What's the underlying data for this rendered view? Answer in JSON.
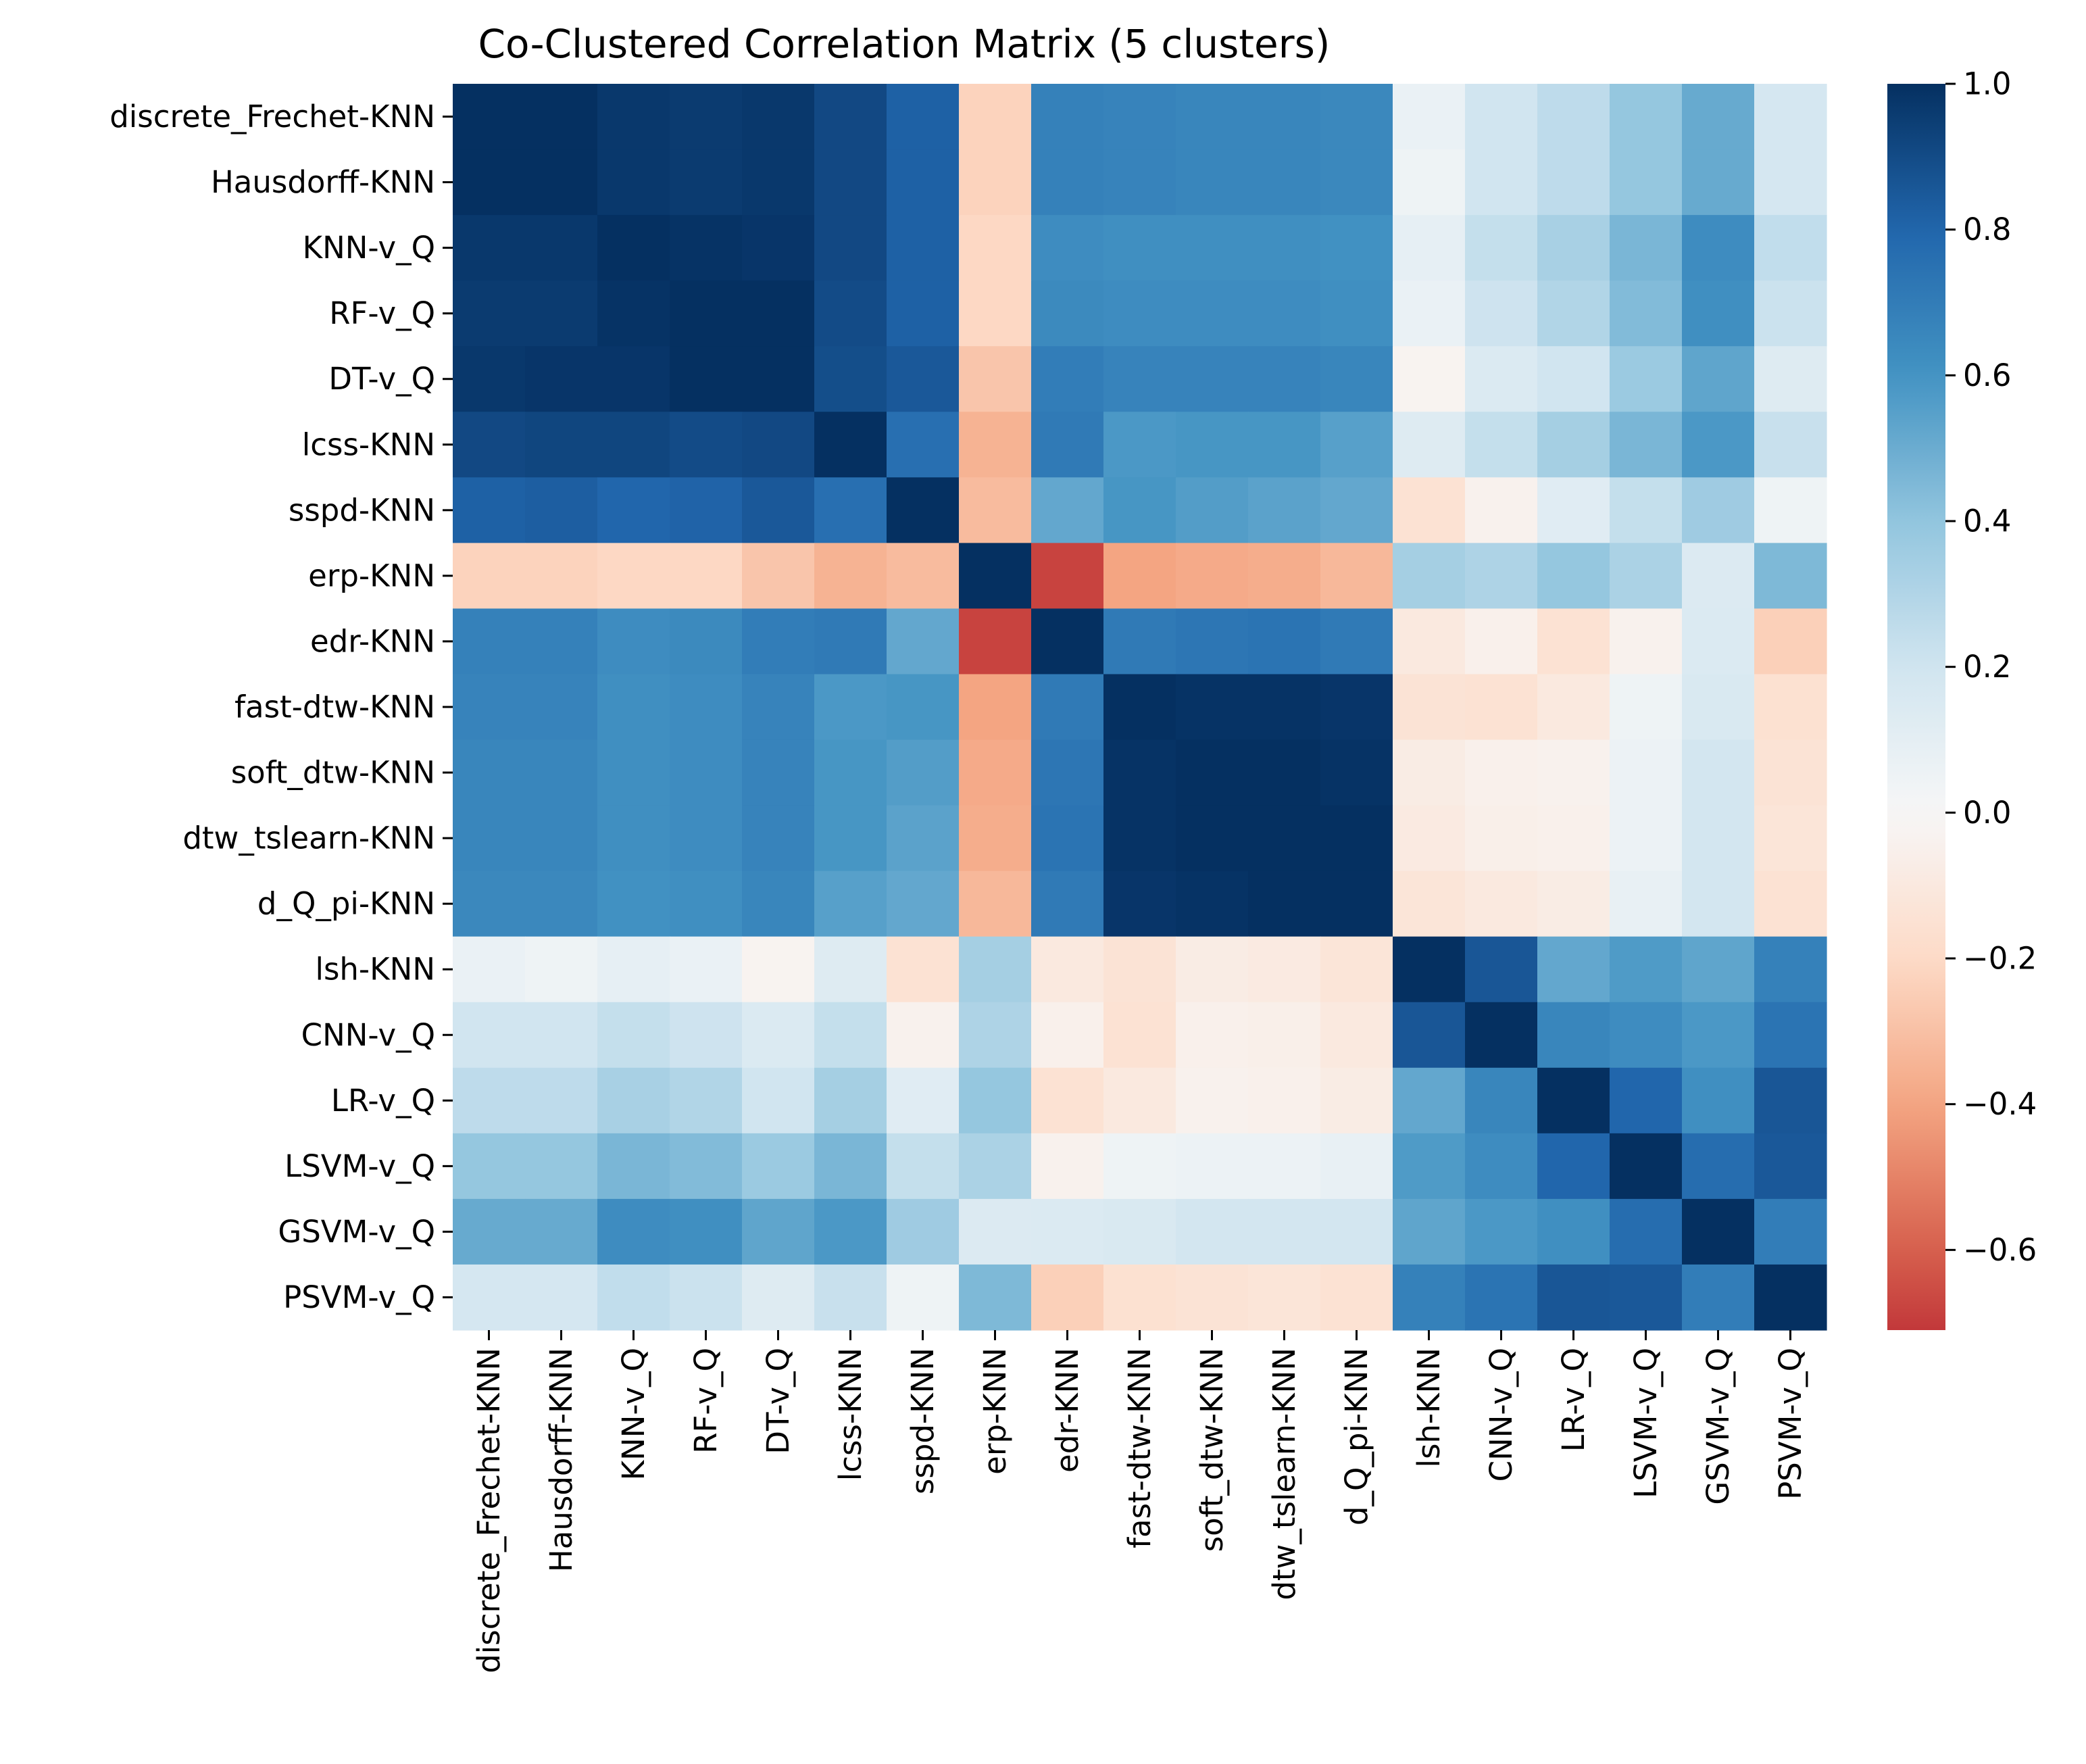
{
  "chart_data": {
    "type": "heatmap",
    "title": "Co-Clustered Correlation Matrix (5 clusters)",
    "xlabel": "",
    "ylabel": "",
    "labels": [
      "discrete_Frechet-KNN",
      "Hausdorff-KNN",
      "KNN-v_Q",
      "RF-v_Q",
      "DT-v_Q",
      "lcss-KNN",
      "sspd-KNN",
      "erp-KNN",
      "edr-KNN",
      "fast-dtw-KNN",
      "soft_dtw-KNN",
      "dtw_tslearn-KNN",
      "d_Q_pi-KNN",
      "lsh-KNN",
      "CNN-v_Q",
      "LR-v_Q",
      "LSVM-v_Q",
      "GSVM-v_Q",
      "PSVM-v_Q"
    ],
    "values": [
      [
        1.0,
        1.0,
        0.97,
        0.96,
        0.97,
        0.91,
        0.82,
        -0.23,
        0.68,
        0.67,
        0.66,
        0.66,
        0.65,
        0.07,
        0.2,
        0.26,
        0.39,
        0.51,
        0.18
      ],
      [
        1.0,
        1.0,
        0.97,
        0.96,
        0.97,
        0.91,
        0.82,
        -0.23,
        0.68,
        0.67,
        0.66,
        0.66,
        0.65,
        0.05,
        0.2,
        0.26,
        0.39,
        0.51,
        0.18
      ],
      [
        0.97,
        0.97,
        1.0,
        0.99,
        0.98,
        0.91,
        0.82,
        -0.21,
        0.63,
        0.62,
        0.62,
        0.62,
        0.61,
        0.09,
        0.24,
        0.33,
        0.46,
        0.63,
        0.25
      ],
      [
        0.96,
        0.96,
        0.99,
        1.0,
        1.0,
        0.9,
        0.82,
        -0.21,
        0.64,
        0.63,
        0.63,
        0.63,
        0.62,
        0.07,
        0.21,
        0.3,
        0.44,
        0.62,
        0.22
      ],
      [
        0.97,
        0.98,
        0.98,
        1.0,
        1.0,
        0.89,
        0.85,
        -0.28,
        0.7,
        0.67,
        0.67,
        0.67,
        0.66,
        -0.03,
        0.15,
        0.2,
        0.37,
        0.53,
        0.13
      ],
      [
        0.91,
        0.92,
        0.92,
        0.9,
        0.91,
        1.0,
        0.76,
        -0.35,
        0.71,
        0.58,
        0.59,
        0.59,
        0.55,
        0.13,
        0.24,
        0.34,
        0.46,
        0.58,
        0.23
      ],
      [
        0.82,
        0.83,
        0.8,
        0.81,
        0.85,
        0.76,
        1.0,
        -0.32,
        0.52,
        0.59,
        0.56,
        0.54,
        0.52,
        -0.15,
        -0.04,
        0.12,
        0.24,
        0.36,
        0.05
      ],
      [
        -0.23,
        -0.23,
        -0.21,
        -0.21,
        -0.28,
        -0.35,
        -0.32,
        1.0,
        -0.68,
        -0.4,
        -0.38,
        -0.37,
        -0.33,
        0.34,
        0.31,
        0.39,
        0.32,
        0.14,
        0.45
      ],
      [
        0.68,
        0.68,
        0.63,
        0.64,
        0.7,
        0.71,
        0.52,
        -0.68,
        1.0,
        0.71,
        0.73,
        0.74,
        0.71,
        -0.1,
        -0.05,
        -0.15,
        -0.04,
        0.15,
        -0.24
      ],
      [
        0.67,
        0.67,
        0.62,
        0.63,
        0.67,
        0.58,
        0.59,
        -0.4,
        0.71,
        1.0,
        0.99,
        0.99,
        0.98,
        -0.14,
        -0.15,
        -0.1,
        0.05,
        0.16,
        -0.16
      ],
      [
        0.66,
        0.66,
        0.62,
        0.63,
        0.67,
        0.59,
        0.56,
        -0.38,
        0.73,
        0.99,
        1.0,
        1.0,
        0.99,
        -0.08,
        -0.05,
        -0.04,
        0.06,
        0.19,
        -0.14
      ],
      [
        0.66,
        0.66,
        0.62,
        0.63,
        0.67,
        0.59,
        0.54,
        -0.37,
        0.74,
        0.99,
        1.0,
        1.0,
        1.0,
        -0.09,
        -0.06,
        -0.05,
        0.06,
        0.19,
        -0.13
      ],
      [
        0.65,
        0.65,
        0.61,
        0.62,
        0.66,
        0.55,
        0.52,
        -0.33,
        0.71,
        0.98,
        0.99,
        1.0,
        1.0,
        -0.13,
        -0.1,
        -0.08,
        0.08,
        0.19,
        -0.15
      ],
      [
        0.07,
        0.05,
        0.09,
        0.07,
        -0.03,
        0.13,
        -0.15,
        0.34,
        -0.1,
        -0.14,
        -0.08,
        -0.09,
        -0.13,
        1.0,
        0.86,
        0.52,
        0.57,
        0.53,
        0.68
      ],
      [
        0.2,
        0.2,
        0.24,
        0.21,
        0.15,
        0.24,
        -0.04,
        0.31,
        -0.05,
        -0.15,
        -0.05,
        -0.06,
        -0.1,
        0.86,
        1.0,
        0.66,
        0.63,
        0.58,
        0.74
      ],
      [
        0.26,
        0.26,
        0.33,
        0.3,
        0.2,
        0.34,
        0.12,
        0.39,
        -0.15,
        -0.1,
        -0.04,
        -0.05,
        -0.08,
        0.52,
        0.66,
        1.0,
        0.8,
        0.62,
        0.86
      ],
      [
        0.39,
        0.39,
        0.46,
        0.44,
        0.37,
        0.46,
        0.24,
        0.32,
        -0.04,
        0.05,
        0.06,
        0.06,
        0.08,
        0.57,
        0.63,
        0.8,
        1.0,
        0.77,
        0.85
      ],
      [
        0.51,
        0.51,
        0.63,
        0.62,
        0.53,
        0.58,
        0.36,
        0.14,
        0.15,
        0.16,
        0.19,
        0.19,
        0.19,
        0.53,
        0.58,
        0.62,
        0.77,
        1.0,
        0.7
      ],
      [
        0.18,
        0.18,
        0.25,
        0.22,
        0.13,
        0.23,
        0.05,
        0.45,
        -0.24,
        -0.16,
        -0.14,
        -0.13,
        -0.15,
        0.68,
        0.74,
        0.86,
        0.85,
        0.7,
        1.0
      ]
    ],
    "colorbar": {
      "vmin": -0.71,
      "vmax": 1.0,
      "colormap": "RdBu",
      "center": 0.0,
      "ticks": [
        1.0,
        0.8,
        0.6,
        0.4,
        0.2,
        0.0,
        -0.2,
        -0.4,
        -0.6
      ],
      "tick_labels": [
        "1.0",
        "0.8",
        "0.6",
        "0.4",
        "0.2",
        "0.0",
        "−0.2",
        "−0.4",
        "−0.6"
      ]
    },
    "grid": false,
    "legend": "colorbar-right"
  }
}
